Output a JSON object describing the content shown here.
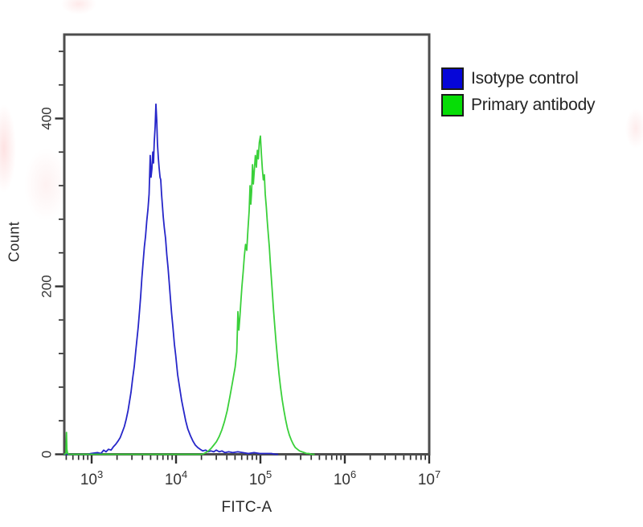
{
  "figure": {
    "background": "#ffffff",
    "frame_color": "#4d4d4d",
    "tick_color": "#2f2f2f",
    "tick_label_color": "#333333",
    "axis_label_color": "#2a2a2a",
    "watermark_color": "#f8c8c8"
  },
  "legend": {
    "items": [
      {
        "label": "Isotype control",
        "swatch_color": "#0606d8",
        "swatch_border": "#1b1b1b"
      },
      {
        "label": "Primary antibody",
        "swatch_color": "#06dd06",
        "swatch_border": "#1b1b1b"
      }
    ]
  },
  "chart_data": {
    "type": "line",
    "subtype": "flow-cytometry-histogram-overlay",
    "title": "",
    "xlabel": "FITC-A",
    "ylabel": "Count",
    "x_scale": "log10",
    "x_domain_log10": [
      2.676,
      7
    ],
    "ylim": [
      0,
      500
    ],
    "y_major_ticks": [
      0,
      200,
      400
    ],
    "y_minor_step": 40,
    "x_major_ticks_exponents": [
      3,
      4,
      5,
      6,
      7
    ],
    "grid": false,
    "legend_position": "outside-top-right",
    "series": [
      {
        "name": "Isotype control",
        "color": "#2626c9",
        "peak": {
          "x": 5780,
          "count": 417
        },
        "points": [
          [
            474,
            0
          ],
          [
            900,
            0
          ],
          [
            980,
            1
          ],
          [
            1170,
            2
          ],
          [
            1290,
            1
          ],
          [
            1390,
            5
          ],
          [
            1480,
            3
          ],
          [
            1585,
            6
          ],
          [
            1700,
            5
          ],
          [
            1810,
            9
          ],
          [
            1930,
            12
          ],
          [
            2060,
            16
          ],
          [
            2180,
            20
          ],
          [
            2300,
            26
          ],
          [
            2440,
            33
          ],
          [
            2570,
            42
          ],
          [
            2700,
            52
          ],
          [
            2800,
            62
          ],
          [
            2930,
            74
          ],
          [
            3060,
            90
          ],
          [
            3200,
            105
          ],
          [
            3340,
            124
          ],
          [
            3450,
            138
          ],
          [
            3570,
            152
          ],
          [
            3700,
            172
          ],
          [
            3810,
            188
          ],
          [
            3940,
            210
          ],
          [
            4070,
            228
          ],
          [
            4210,
            247
          ],
          [
            4350,
            260
          ],
          [
            4500,
            278
          ],
          [
            4650,
            292
          ],
          [
            4800,
            310
          ],
          [
            4950,
            356
          ],
          [
            5050,
            330
          ],
          [
            5180,
            340
          ],
          [
            5300,
            360
          ],
          [
            5410,
            347
          ],
          [
            5520,
            372
          ],
          [
            5650,
            390
          ],
          [
            5780,
            417
          ],
          [
            5900,
            398
          ],
          [
            6030,
            370
          ],
          [
            6170,
            353
          ],
          [
            6300,
            342
          ],
          [
            6460,
            330
          ],
          [
            6590,
            327
          ],
          [
            6740,
            310
          ],
          [
            6900,
            296
          ],
          [
            7050,
            283
          ],
          [
            7250,
            270
          ],
          [
            7520,
            257
          ],
          [
            7770,
            238
          ],
          [
            8040,
            222
          ],
          [
            8300,
            205
          ],
          [
            8600,
            185
          ],
          [
            8870,
            168
          ],
          [
            9170,
            152
          ],
          [
            9570,
            131
          ],
          [
            9900,
            118
          ],
          [
            10450,
            95
          ],
          [
            11000,
            80
          ],
          [
            11660,
            64
          ],
          [
            12300,
            52
          ],
          [
            13000,
            40
          ],
          [
            13800,
            30
          ],
          [
            14830,
            22
          ],
          [
            15800,
            16
          ],
          [
            16940,
            11
          ],
          [
            18100,
            8
          ],
          [
            19320,
            6
          ],
          [
            20700,
            4
          ],
          [
            22500,
            5
          ],
          [
            24000,
            3
          ],
          [
            26000,
            4
          ],
          [
            28000,
            3
          ],
          [
            30000,
            5
          ],
          [
            32500,
            3
          ],
          [
            35000,
            4
          ],
          [
            38000,
            2
          ],
          [
            42000,
            3
          ],
          [
            47000,
            2
          ],
          [
            54000,
            3
          ],
          [
            62000,
            2
          ],
          [
            72000,
            1
          ],
          [
            84000,
            2
          ],
          [
            98000,
            1
          ],
          [
            115000,
            1
          ],
          [
            135000,
            1
          ],
          [
            150000,
            0
          ],
          [
            160000,
            0
          ]
        ]
      },
      {
        "name": "Primary antibody",
        "color": "#3ad03a",
        "peak": {
          "x": 100000,
          "count": 379
        },
        "points": [
          [
            474,
            0
          ],
          [
            495,
            1
          ],
          [
            503,
            26
          ],
          [
            509,
            6
          ],
          [
            517,
            2
          ],
          [
            530,
            0
          ],
          [
            700,
            0
          ],
          [
            5000,
            0
          ],
          [
            15000,
            0
          ],
          [
            20500,
            0
          ],
          [
            22500,
            2
          ],
          [
            24200,
            4
          ],
          [
            26000,
            7
          ],
          [
            28000,
            11
          ],
          [
            30100,
            15
          ],
          [
            32400,
            21
          ],
          [
            34900,
            29
          ],
          [
            37500,
            39
          ],
          [
            40400,
            52
          ],
          [
            43400,
            68
          ],
          [
            46700,
            86
          ],
          [
            50200,
            104
          ],
          [
            52500,
            122
          ],
          [
            54100,
            170
          ],
          [
            55500,
            148
          ],
          [
            57000,
            163
          ],
          [
            58700,
            182
          ],
          [
            60400,
            200
          ],
          [
            62500,
            218
          ],
          [
            64500,
            236
          ],
          [
            66700,
            250
          ],
          [
            68900,
            243
          ],
          [
            71200,
            268
          ],
          [
            73600,
            290
          ],
          [
            75300,
            320
          ],
          [
            77000,
            298
          ],
          [
            78600,
            312
          ],
          [
            80700,
            345
          ],
          [
            82500,
            322
          ],
          [
            84700,
            338
          ],
          [
            87000,
            356
          ],
          [
            89600,
            342
          ],
          [
            92000,
            362
          ],
          [
            94500,
            352
          ],
          [
            97000,
            371
          ],
          [
            100000,
            379
          ],
          [
            102600,
            358
          ],
          [
            105300,
            340
          ],
          [
            108200,
            327
          ],
          [
            111200,
            333
          ],
          [
            114100,
            310
          ],
          [
            117300,
            295
          ],
          [
            120500,
            278
          ],
          [
            123900,
            262
          ],
          [
            127400,
            247
          ],
          [
            131000,
            228
          ],
          [
            134700,
            210
          ],
          [
            138600,
            192
          ],
          [
            143000,
            172
          ],
          [
            148000,
            152
          ],
          [
            153500,
            133
          ],
          [
            159500,
            114
          ],
          [
            166000,
            96
          ],
          [
            173000,
            80
          ],
          [
            181000,
            65
          ],
          [
            190000,
            52
          ],
          [
            199000,
            41
          ],
          [
            209000,
            31
          ],
          [
            220000,
            23
          ],
          [
            232000,
            17
          ],
          [
            245000,
            12
          ],
          [
            259000,
            8
          ],
          [
            274000,
            6
          ],
          [
            291000,
            4
          ],
          [
            310000,
            3
          ],
          [
            330000,
            2
          ],
          [
            352000,
            1
          ],
          [
            376000,
            1
          ],
          [
            400000,
            0
          ],
          [
            434000,
            0
          ]
        ]
      }
    ]
  }
}
